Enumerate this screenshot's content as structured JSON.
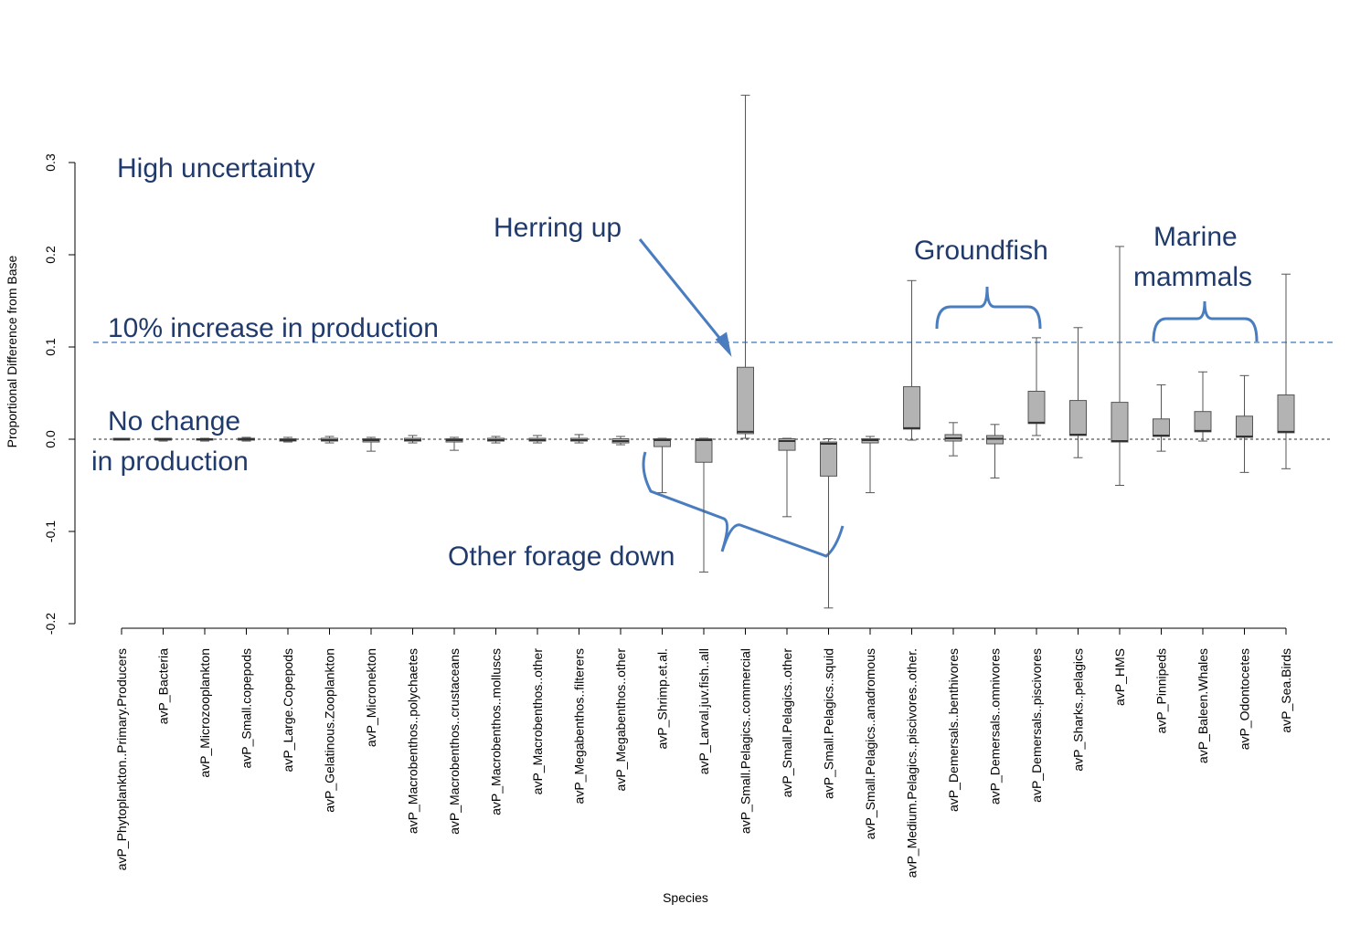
{
  "chart_data": {
    "type": "box",
    "x_label": "Species",
    "y_label": "Proportional Difference from Base",
    "categories": [
      "avP_Phytoplankton..Primary.Producers",
      "avP_Bacteria",
      "avP_Microzooplankton",
      "avP_Small.copepods",
      "avP_Large.Copepods",
      "avP_Gelatinous.Zooplankton",
      "avP_Micronekton",
      "avP_Macrobenthos..polychaetes",
      "avP_Macrobenthos..crustaceans",
      "avP_Macrobenthos..molluscs",
      "avP_Macrobenthos..other",
      "avP_Megabenthos..filterers",
      "avP_Megabenthos..other",
      "avP_Shrimp.et.al.",
      "avP_Larval.juv.fish..all",
      "avP_Small.Pelagics..commercial",
      "avP_Small.Pelagics..other",
      "avP_Small.Pelagics..squid",
      "avP_Small.Pelagics..anadromous",
      "avP_Medium.Pelagics..piscivores..other.",
      "avP_Demersals..benthivores",
      "avP_Demersals..omnivores",
      "avP_Demersals..piscivores",
      "avP_Sharks..pelagics",
      "avP_HMS",
      "avP_Pinnipeds",
      "avP_Baleen.Whales",
      "avP_Odontocetes",
      "avP_Sea.Birds"
    ],
    "boxes": [
      {
        "low": -0.001,
        "q1": -0.001,
        "median": 0,
        "q3": 0.001,
        "high": 0.001
      },
      {
        "low": -0.002,
        "q1": -0.001,
        "median": 0,
        "q3": 0.001,
        "high": 0.001
      },
      {
        "low": -0.002,
        "q1": -0.001,
        "median": 0,
        "q3": 0.0005,
        "high": 0.001
      },
      {
        "low": -0.002,
        "q1": -0.001,
        "median": 0,
        "q3": 0.001,
        "high": 0.002
      },
      {
        "low": -0.003,
        "q1": -0.002,
        "median": -0.001,
        "q3": 0.0005,
        "high": 0.002
      },
      {
        "low": -0.004,
        "q1": -0.002,
        "median": -0.001,
        "q3": 0.001,
        "high": 0.003
      },
      {
        "low": -0.013,
        "q1": -0.003,
        "median": -0.001,
        "q3": 0.0005,
        "high": 0.002
      },
      {
        "low": -0.004,
        "q1": -0.002,
        "median": -0.001,
        "q3": 0.001,
        "high": 0.004
      },
      {
        "low": -0.012,
        "q1": -0.003,
        "median": -0.001,
        "q3": 0.0005,
        "high": 0.002
      },
      {
        "low": -0.004,
        "q1": -0.002,
        "median": -0.001,
        "q3": 0.001,
        "high": 0.003
      },
      {
        "low": -0.004,
        "q1": -0.002,
        "median": -0.001,
        "q3": 0.001,
        "high": 0.004
      },
      {
        "low": -0.004,
        "q1": -0.002,
        "median": -0.001,
        "q3": 0.001,
        "high": 0.005
      },
      {
        "low": -0.006,
        "q1": -0.004,
        "median": -0.002,
        "q3": 0.0005,
        "high": 0.003
      },
      {
        "low": -0.058,
        "q1": -0.008,
        "median": -0.001,
        "q3": 0.0005,
        "high": 0.001
      },
      {
        "low": -0.144,
        "q1": -0.025,
        "median": -0.001,
        "q3": 0.0005,
        "high": 0.001
      },
      {
        "low": 0.001,
        "q1": 0.006,
        "median": 0.008,
        "q3": 0.078,
        "high": 0.373
      },
      {
        "low": -0.084,
        "q1": -0.012,
        "median": -0.002,
        "q3": 0.0005,
        "high": 0.001
      },
      {
        "low": -0.183,
        "q1": -0.04,
        "median": -0.005,
        "q3": -0.003,
        "high": 0.0005
      },
      {
        "low": -0.058,
        "q1": -0.004,
        "median": -0.001,
        "q3": 0.0005,
        "high": 0.003
      },
      {
        "low": -0.001,
        "q1": 0.011,
        "median": 0.012,
        "q3": 0.057,
        "high": 0.172
      },
      {
        "low": -0.018,
        "q1": -0.002,
        "median": 0.001,
        "q3": 0.005,
        "high": 0.018
      },
      {
        "low": -0.042,
        "q1": -0.005,
        "median": 0.0005,
        "q3": 0.004,
        "high": 0.016
      },
      {
        "low": 0.004,
        "q1": 0.017,
        "median": 0.018,
        "q3": 0.052,
        "high": 0.11
      },
      {
        "low": -0.02,
        "q1": 0.004,
        "median": 0.005,
        "q3": 0.042,
        "high": 0.121
      },
      {
        "low": -0.05,
        "q1": -0.003,
        "median": -0.002,
        "q3": 0.04,
        "high": 0.209
      },
      {
        "low": -0.013,
        "q1": 0.003,
        "median": 0.004,
        "q3": 0.022,
        "high": 0.059
      },
      {
        "low": -0.002,
        "q1": 0.008,
        "median": 0.009,
        "q3": 0.03,
        "high": 0.073
      },
      {
        "low": -0.036,
        "q1": 0.002,
        "median": 0.003,
        "q3": 0.025,
        "high": 0.069
      },
      {
        "low": -0.032,
        "q1": 0.007,
        "median": 0.008,
        "q3": 0.048,
        "high": 0.179
      }
    ],
    "box_color": "#b3b3b3",
    "ylim": [
      -0.2,
      0.3
    ],
    "yticks": [
      {
        "value": -0.2,
        "label": "-0.2"
      },
      {
        "value": -0.1,
        "label": "-0.1"
      },
      {
        "value": 0,
        "label": "0.0"
      },
      {
        "value": 0.1,
        "label": "0.1"
      },
      {
        "value": 0.2,
        "label": "0.2"
      },
      {
        "value": 0.3,
        "label": "0.3"
      }
    ],
    "reference_lines": [
      {
        "value": 0.105,
        "color": "#4f81bd"
      },
      {
        "value": 0,
        "color": "#555555"
      }
    ],
    "annotations": [
      "High uncertainty",
      "Herring up",
      "Groundfish",
      "Marine",
      "mammals",
      "10% increase in production",
      "No change",
      "in production",
      "Other forage down"
    ]
  }
}
